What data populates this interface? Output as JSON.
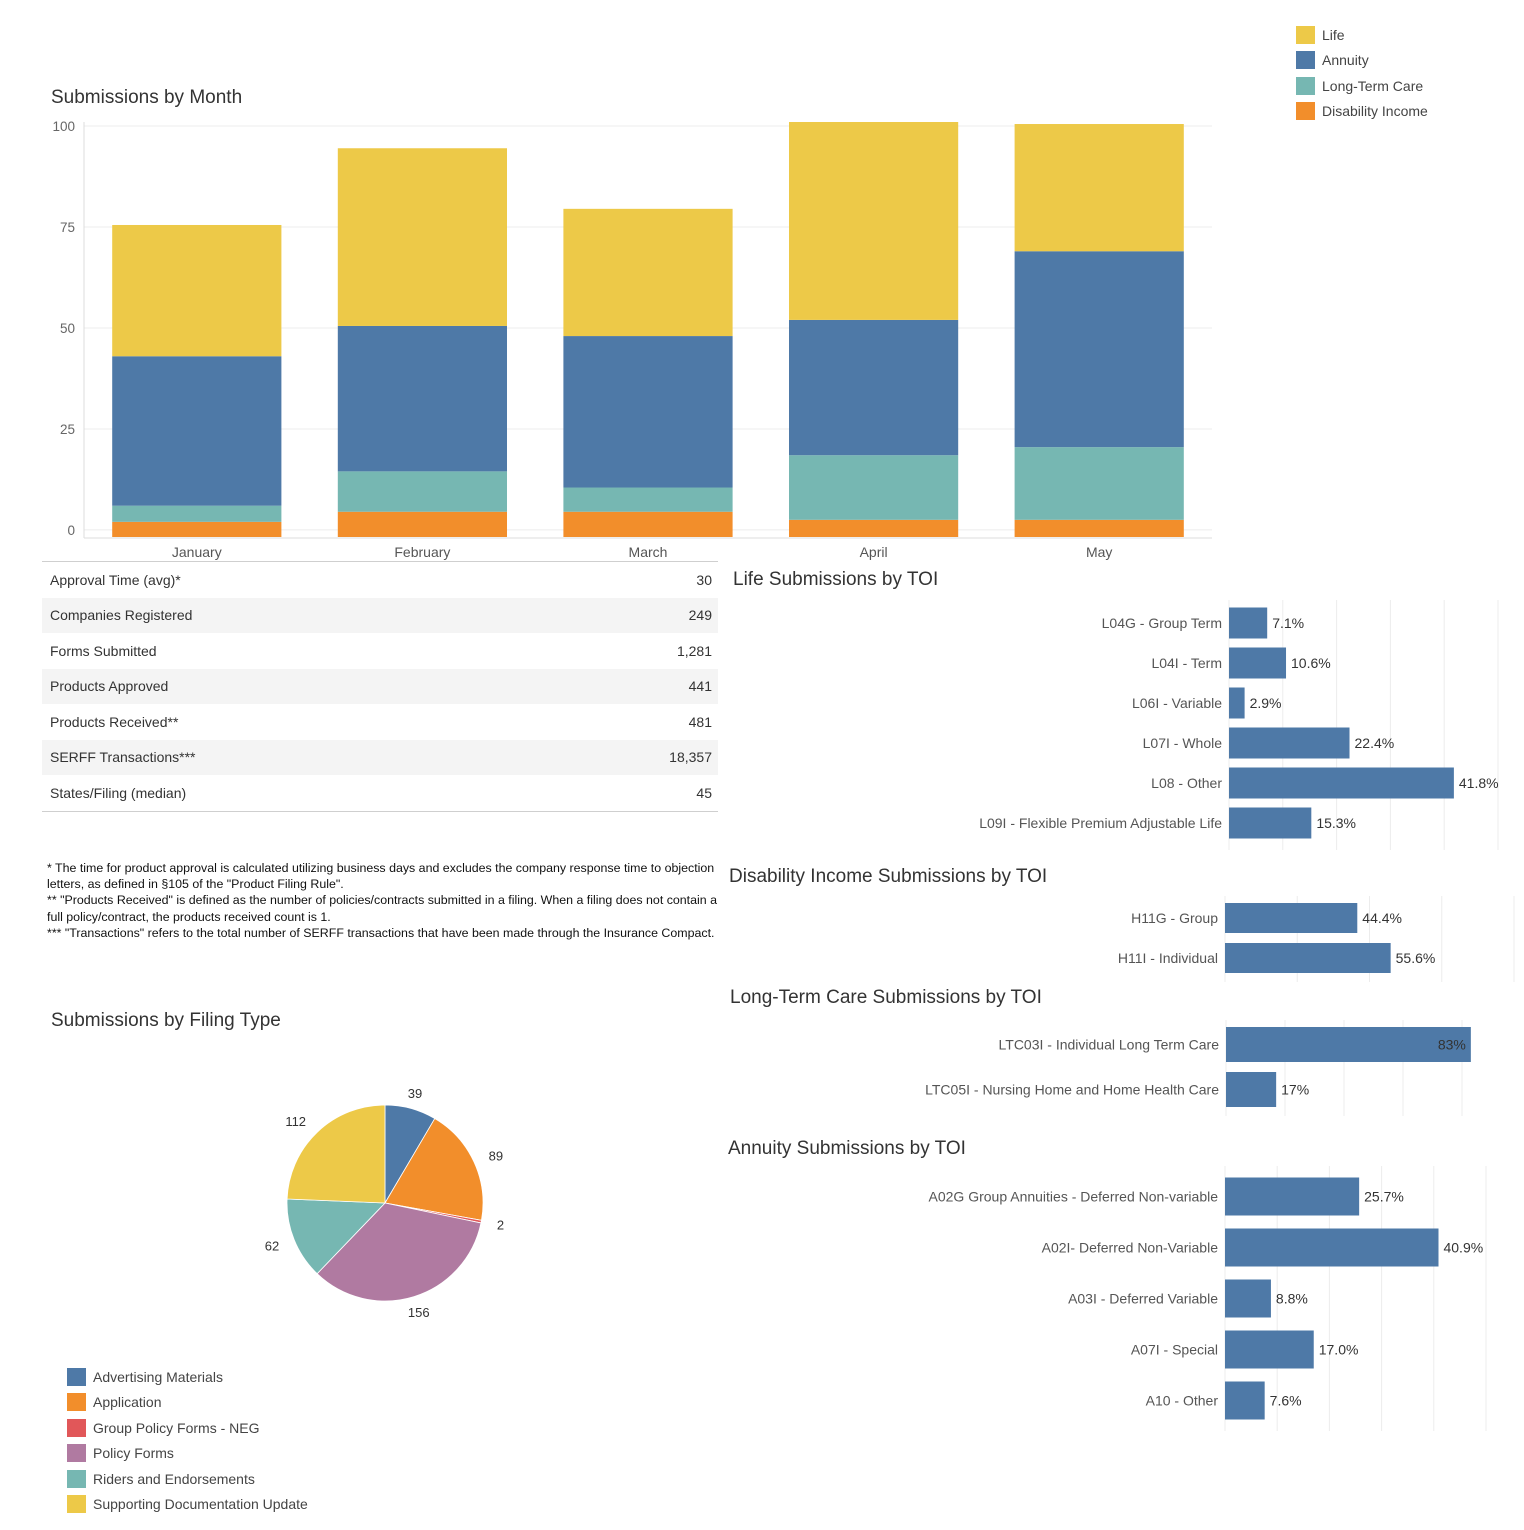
{
  "colors": {
    "life": "#EDC948",
    "annuity": "#4E79A7",
    "ltc": "#76B7B2",
    "di": "#F28E2B",
    "neg": "#E15759",
    "policy": "#B07AA1",
    "grid": "#ececec",
    "axis": "#dddddd"
  },
  "legend_top": {
    "items": [
      {
        "label": "Life",
        "color": "#EDC948"
      },
      {
        "label": "Annuity",
        "color": "#4E79A7"
      },
      {
        "label": "Long-Term Care",
        "color": "#76B7B2"
      },
      {
        "label": "Disability Income",
        "color": "#F28E2B"
      }
    ]
  },
  "stats": {
    "rows": [
      {
        "label": "Approval Time (avg)*",
        "value": "30"
      },
      {
        "label": "Companies Registered",
        "value": "249"
      },
      {
        "label": "Forms Submitted",
        "value": "1,281"
      },
      {
        "label": "Products Approved",
        "value": "441"
      },
      {
        "label": "Products Received**",
        "value": "481"
      },
      {
        "label": "SERFF Transactions***",
        "value": "18,357"
      },
      {
        "label": "States/Filing (median)",
        "value": "45"
      }
    ]
  },
  "notes": {
    "n1": "* The time for product approval is calculated utilizing business days and excludes the company response time to objection letters, as defined in §105 of the \"Product Filing Rule\".",
    "n2": "** \"Products Received\" is defined as the number of policies/contracts submitted in a filing. When a filing does not contain a full policy/contract, the products received count is 1.",
    "n3": "*** \"Transactions\" refers to the total number of SERFF transactions that have been made through the Insurance Compact."
  },
  "legend_pie": {
    "items": [
      {
        "label": "Advertising Materials",
        "color": "#4E79A7"
      },
      {
        "label": "Application",
        "color": "#F28E2B"
      },
      {
        "label": "Group Policy Forms - NEG",
        "color": "#E15759"
      },
      {
        "label": "Policy Forms",
        "color": "#B07AA1"
      },
      {
        "label": "Riders and Endorsements",
        "color": "#76B7B2"
      },
      {
        "label": "Supporting Documentation Update",
        "color": "#EDC948"
      }
    ]
  },
  "chart_data": [
    {
      "type": "bar",
      "stacked": true,
      "title": "Submissions by Month",
      "categories": [
        "January",
        "February",
        "March",
        "April",
        "May"
      ],
      "series": [
        {
          "name": "Disability Income",
          "color": "#F28E2B",
          "values": [
            2,
            4.5,
            4.5,
            2.5,
            2.5
          ]
        },
        {
          "name": "Long-Term Care",
          "color": "#76B7B2",
          "values": [
            4,
            10,
            6,
            16,
            18
          ]
        },
        {
          "name": "Annuity",
          "color": "#4E79A7",
          "values": [
            37,
            36,
            37.5,
            33.5,
            48.5
          ]
        },
        {
          "name": "Life",
          "color": "#EDC948",
          "values": [
            32.5,
            44,
            31.5,
            49,
            31.5
          ]
        }
      ],
      "yticks": [
        0,
        25,
        50,
        75,
        100
      ],
      "ylim": [
        -2,
        101
      ],
      "xlabel": "",
      "ylabel": ""
    },
    {
      "type": "bar",
      "orientation": "horizontal",
      "title": "Life Submissions by TOI",
      "categories": [
        "L04G - Group Term",
        "L04I - Term",
        "L06I - Variable",
        "L07I - Whole",
        "L08 - Other",
        "L09I - Flexible Premium Adjustable Life"
      ],
      "values": [
        7.1,
        10.6,
        2.9,
        22.4,
        41.8,
        15.3
      ],
      "labels": [
        "7.1%",
        "10.6%",
        "2.9%",
        "22.4%",
        "41.8%",
        "15.3%"
      ],
      "xlim": [
        0,
        50
      ]
    },
    {
      "type": "bar",
      "orientation": "horizontal",
      "title": "Disability Income Submissions by TOI",
      "categories": [
        "H11G - Group",
        "H11I - Individual"
      ],
      "values": [
        44.4,
        55.6
      ],
      "labels": [
        "44.4%",
        "55.6%"
      ],
      "xlim": [
        0,
        97
      ]
    },
    {
      "type": "bar",
      "orientation": "horizontal",
      "title": "Long-Term Care Submissions by TOI",
      "categories": [
        "LTC03I - Individual Long Term Care",
        "LTC05I  - Nursing Home and Home Health Care"
      ],
      "values": [
        83,
        17
      ],
      "labels": [
        "83%",
        "17%"
      ],
      "xlim": [
        0,
        100
      ]
    },
    {
      "type": "bar",
      "orientation": "horizontal",
      "title": "Annuity Submissions by TOI",
      "categories": [
        "A02G Group Annuities - Deferred Non-variable",
        "A02I- Deferred Non-Variable",
        "A03I - Deferred Variable",
        "A07I - Special",
        "A10 - Other"
      ],
      "values": [
        25.7,
        40.9,
        8.8,
        17.0,
        7.6
      ],
      "labels": [
        "25.7%",
        "40.9%",
        "8.8%",
        "17.0%",
        "7.6%"
      ],
      "xlim": [
        0,
        50
      ]
    },
    {
      "type": "pie",
      "title": "Submissions by Filing Type",
      "categories": [
        "Advertising Materials",
        "Application",
        "Group Policy Forms - NEG",
        "Policy Forms",
        "Riders and Endorsements",
        "Supporting Documentation Update"
      ],
      "values": [
        39,
        89,
        2,
        156,
        62,
        112
      ],
      "labels": [
        "39",
        "89",
        "2",
        "156",
        "62",
        "112"
      ],
      "colors": [
        "#4E79A7",
        "#F28E2B",
        "#E15759",
        "#B07AA1",
        "#76B7B2",
        "#EDC948"
      ]
    }
  ]
}
